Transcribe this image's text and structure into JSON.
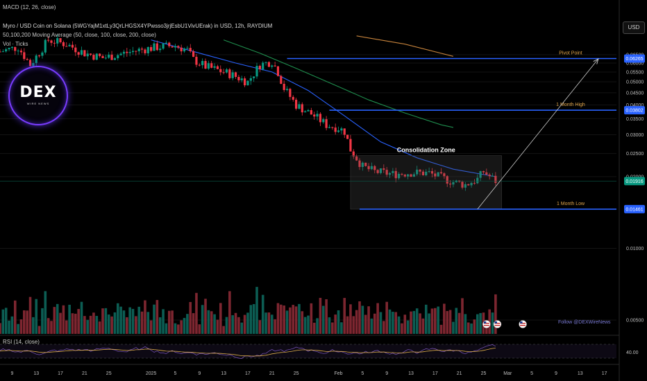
{
  "header": {
    "macd_label": "MACD (12, 26, close)",
    "title": "Myro / USD Coin on Solana (5WGYajM1xtLy3QrLHGSX4YPwsso3jrjEsbU1VivUErak) in USD, 12h, RAYDIUM",
    "ma_label": "50,100,200 Moving Average (50, close, 100, close, 200, close)",
    "vol_label": "Vol · Ticks",
    "rsi_label": "RSI (14, close)"
  },
  "toolbar": {
    "currency": "USD"
  },
  "logo": {
    "main": "DEX",
    "sub": "WIRE NEWS"
  },
  "footer": {
    "follow": "Follow @DEXWireNews"
  },
  "colors": {
    "up": "#089981",
    "down": "#f23645",
    "up_vol": "#0c5d53",
    "down_vol": "#7d2630",
    "ma50": "#2962ff",
    "ma100": "#1f8f4e",
    "ma200": "#c8843c",
    "level": "#2962ff",
    "rsi": "#7e57c2",
    "rsi_ma": "#e0b04a",
    "projection": "#cfcfcf",
    "annotation": "#e0a54a",
    "price_tag": "#089981",
    "follow": "#7b7bd6"
  },
  "chart_data": {
    "type": "candlestick",
    "interval": "12h",
    "currency": "USD",
    "y_scale": "log",
    "y_axis_ticks": [
      0.065,
      0.06,
      0.055,
      0.05,
      0.045,
      0.04,
      0.035,
      0.03,
      0.025,
      0.02,
      0.01,
      0.005
    ],
    "y_axis_tick_labels": [
      "0.06500",
      "0.06000",
      "0.05500",
      "0.05000",
      "0.04500",
      "0.04000",
      "0.03500",
      "0.03000",
      "0.02500",
      "0.02000",
      "0.01000",
      "0.00500"
    ],
    "x_axis_tick_labels": [
      "9",
      "13",
      "17",
      "21",
      "25",
      "2025",
      "5",
      "9",
      "13",
      "17",
      "21",
      "25",
      "Feb",
      "5",
      "9",
      "13",
      "17",
      "21",
      "25",
      "Mar",
      "5",
      "9",
      "13",
      "17"
    ],
    "x_axis_tick_days": [
      -23,
      -19,
      -15,
      -11,
      -7,
      0,
      4,
      8,
      12,
      16,
      20,
      24,
      31,
      35,
      39,
      43,
      47,
      51,
      55,
      59,
      63,
      67,
      71,
      75
    ],
    "x_range_days": [
      -25,
      77
    ],
    "candles_last_day": 57,
    "price_levels": [
      {
        "label": "Pivot Point",
        "value": 0.06265,
        "tag": "0.06265"
      },
      {
        "label": "1 Month High",
        "value": 0.03802,
        "tag": "0.03802"
      },
      {
        "label": "1 Month Low",
        "value": 0.01461,
        "tag": "0.01461"
      }
    ],
    "current_price": {
      "value": 0.01916,
      "tag": "0.01916"
    },
    "consolidation_zone": {
      "label": "Consolidation Zone",
      "from_day": 33,
      "to_day": 58,
      "top": 0.0245,
      "bottom": 0.0146
    },
    "projection": {
      "from": [
        54,
        0.0146
      ],
      "to": [
        74,
        0.0625
      ]
    },
    "close_path": [
      [
        -25,
        0.067
      ],
      [
        -22,
        0.07
      ],
      [
        -20,
        0.059
      ],
      [
        -17,
        0.075
      ],
      [
        -14,
        0.072
      ],
      [
        -11,
        0.066
      ],
      [
        -8,
        0.063
      ],
      [
        -5,
        0.0655
      ],
      [
        -2,
        0.068
      ],
      [
        1,
        0.07
      ],
      [
        4,
        0.071
      ],
      [
        6,
        0.068
      ],
      [
        7,
        0.062
      ],
      [
        9,
        0.058
      ],
      [
        11,
        0.056
      ],
      [
        13,
        0.054
      ],
      [
        16,
        0.05
      ],
      [
        18,
        0.059
      ],
      [
        20,
        0.061
      ],
      [
        21,
        0.055
      ],
      [
        22,
        0.047
      ],
      [
        24,
        0.04
      ],
      [
        27,
        0.036
      ],
      [
        29,
        0.033
      ],
      [
        31,
        0.032
      ],
      [
        32,
        0.031
      ],
      [
        33,
        0.026
      ],
      [
        35,
        0.022
      ],
      [
        37,
        0.021
      ],
      [
        40,
        0.0205
      ],
      [
        43,
        0.0208
      ],
      [
        46,
        0.0207
      ],
      [
        48,
        0.0198
      ],
      [
        50,
        0.019
      ],
      [
        52,
        0.0185
      ],
      [
        54,
        0.0195
      ],
      [
        55,
        0.021
      ],
      [
        57,
        0.0192
      ]
    ],
    "moving_averages": [
      {
        "name": "MA 50",
        "points": [
          [
            0,
            0.075
          ],
          [
            8,
            0.066
          ],
          [
            14,
            0.06
          ],
          [
            20,
            0.055
          ],
          [
            26,
            0.046
          ],
          [
            32,
            0.036
          ],
          [
            38,
            0.028
          ],
          [
            44,
            0.024
          ],
          [
            50,
            0.0215
          ],
          [
            57,
            0.02
          ]
        ]
      },
      {
        "name": "MA 100",
        "points": [
          [
            12,
            0.075
          ],
          [
            18,
            0.066
          ],
          [
            24,
            0.057
          ],
          [
            30,
            0.049
          ],
          [
            36,
            0.042
          ],
          [
            42,
            0.037
          ],
          [
            48,
            0.033
          ],
          [
            50,
            0.0322
          ]
        ]
      },
      {
        "name": "MA 200",
        "points": [
          [
            34,
            0.078
          ],
          [
            42,
            0.072
          ],
          [
            50,
            0.064
          ]
        ]
      }
    ],
    "volume_ticks": [
      "0.01000",
      "0.00500"
    ],
    "rsi": {
      "tick_label": "40.00",
      "value_range": [
        20,
        80
      ],
      "upper_band": 70,
      "lower_band": 30
    }
  }
}
